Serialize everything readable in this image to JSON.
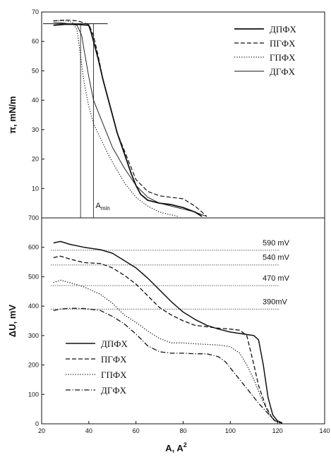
{
  "chart_data": [
    {
      "type": "line",
      "panel": "top",
      "title": "",
      "xlabel": "",
      "ylabel": "π, mN/m",
      "xlim": [
        20,
        140
      ],
      "ylim": [
        0,
        70
      ],
      "yticks": [
        10,
        20,
        30,
        40,
        50,
        60,
        70
      ],
      "grid": false,
      "legend_position": "top-right",
      "series": [
        {
          "name": "ДПФХ",
          "style": "solid",
          "width": 1.8,
          "x": [
            25,
            30,
            35,
            40,
            41,
            42,
            44,
            46,
            48,
            50,
            52,
            55,
            58,
            60,
            62,
            65,
            70,
            75,
            80,
            85,
            88
          ],
          "y": [
            65.5,
            65.8,
            65.8,
            65.5,
            63,
            60,
            54,
            47,
            41,
            35,
            29,
            22,
            15,
            11,
            8,
            6,
            5,
            4.5,
            3.5,
            2,
            0.5
          ]
        },
        {
          "name": "ПГФХ",
          "style": "dashed",
          "width": 1.2,
          "x": [
            25,
            30,
            35,
            40,
            42,
            44,
            46,
            48,
            50,
            52,
            55,
            58,
            60,
            65,
            70,
            75,
            80,
            85,
            88,
            90
          ],
          "y": [
            67,
            67.3,
            67,
            65.8,
            62,
            55,
            47,
            41,
            35,
            29,
            23,
            17,
            13,
            9,
            7.5,
            7,
            6.5,
            4,
            2,
            0.5
          ]
        },
        {
          "name": "ГПФХ",
          "style": "dotted",
          "width": 1.2,
          "x": [
            25,
            30,
            33,
            35,
            36,
            37,
            38,
            40,
            42,
            45,
            48,
            50,
            55,
            60,
            65,
            70,
            75,
            78
          ],
          "y": [
            67,
            67,
            66.5,
            64,
            58,
            52,
            46,
            38,
            32,
            27,
            22,
            19,
            12,
            7,
            4,
            2,
            1,
            0.5
          ]
        },
        {
          "name": "ДГФХ",
          "style": "solid",
          "width": 0.9,
          "x": [
            25,
            30,
            35,
            37,
            38,
            40,
            42,
            45,
            48,
            50,
            55,
            60,
            65,
            70,
            75,
            80,
            85,
            90
          ],
          "y": [
            66.5,
            66.2,
            65.5,
            62,
            57,
            48,
            40,
            34,
            28,
            24,
            17,
            11,
            7,
            5,
            4,
            3,
            2,
            0.5
          ]
        }
      ],
      "annotations": {
        "amin_label": "A",
        "amin_subscript": "min",
        "amin_x": 42,
        "ref_line_x": 36.5,
        "ref_line_y": 66
      }
    },
    {
      "type": "line",
      "panel": "bottom",
      "title": "",
      "xlabel": "A, A",
      "xlabel_superscript": "2",
      "ylabel": "ΔU, mV",
      "xlim": [
        20,
        140
      ],
      "ylim": [
        0,
        700
      ],
      "xticks": [
        20,
        40,
        60,
        80,
        100,
        120,
        140
      ],
      "yticks": [
        0,
        100,
        200,
        300,
        400,
        500,
        600,
        700
      ],
      "grid": false,
      "legend_position": "bottom-left",
      "series": [
        {
          "name": "ДПФХ",
          "style": "solid",
          "width": 1.5,
          "x": [
            25,
            28,
            32,
            38,
            45,
            50,
            55,
            60,
            65,
            70,
            75,
            80,
            85,
            90,
            95,
            100,
            105,
            110,
            112,
            114,
            116,
            118,
            120,
            122
          ],
          "y": [
            615,
            620,
            610,
            600,
            592,
            580,
            555,
            530,
            495,
            455,
            415,
            380,
            355,
            335,
            322,
            312,
            306,
            300,
            285,
            200,
            90,
            30,
            10,
            3
          ]
        },
        {
          "name": "ПГФХ",
          "style": "dashed",
          "width": 1.3,
          "x": [
            25,
            28,
            32,
            38,
            45,
            50,
            55,
            60,
            65,
            70,
            75,
            80,
            85,
            90,
            95,
            100,
            104,
            107,
            110,
            112,
            115,
            118,
            121
          ],
          "y": [
            565,
            570,
            560,
            548,
            545,
            530,
            505,
            475,
            435,
            395,
            370,
            350,
            335,
            330,
            325,
            322,
            318,
            300,
            200,
            130,
            60,
            15,
            3
          ]
        },
        {
          "name": "ГПФХ",
          "style": "dotted",
          "width": 1.3,
          "x": [
            25,
            28,
            32,
            38,
            45,
            50,
            55,
            60,
            65,
            70,
            75,
            80,
            85,
            90,
            95,
            100,
            104,
            107,
            110,
            113,
            116,
            119,
            121
          ],
          "y": [
            480,
            488,
            480,
            465,
            440,
            410,
            370,
            345,
            315,
            290,
            275,
            275,
            272,
            270,
            268,
            262,
            240,
            200,
            150,
            90,
            40,
            10,
            3
          ]
        },
        {
          "name": "ДГФХ",
          "style": "dashdot",
          "width": 1.3,
          "x": [
            25,
            28,
            32,
            38,
            45,
            50,
            55,
            60,
            65,
            70,
            75,
            80,
            85,
            90,
            95,
            98,
            100,
            104,
            108,
            112,
            116,
            119,
            122
          ],
          "y": [
            385,
            390,
            393,
            392,
            385,
            365,
            340,
            305,
            265,
            245,
            240,
            240,
            238,
            238,
            228,
            210,
            190,
            150,
            110,
            70,
            35,
            10,
            2
          ]
        }
      ],
      "reference_lines": [
        {
          "y": 590,
          "label": "590 mV"
        },
        {
          "y": 540,
          "label": "540 mV"
        },
        {
          "y": 470,
          "label": "470 mV"
        },
        {
          "y": 390,
          "label": "390mV"
        }
      ]
    }
  ]
}
